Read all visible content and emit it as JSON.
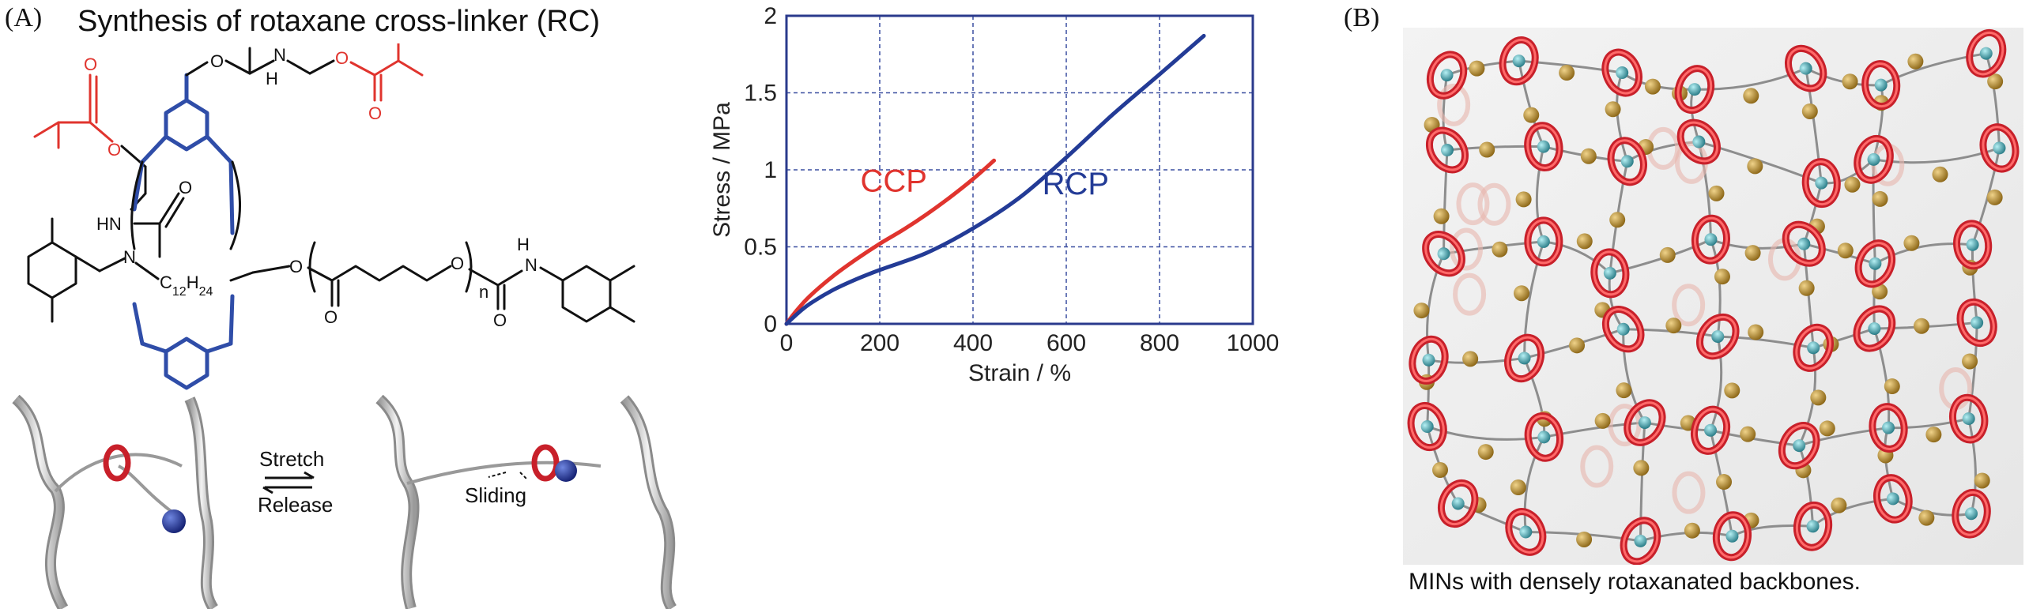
{
  "panel_a": {
    "letter": "(A)",
    "title": "Synthesis of rotaxane cross-linker (RC)",
    "structure_labels": {
      "o": "O",
      "hn": "HN",
      "h": "H",
      "n": "N",
      "c12h24": "C12H24",
      "nh_end": "N",
      "n_sub": "n"
    },
    "scheme": {
      "stretch": "Stretch",
      "release": "Release",
      "sliding": "Sliding"
    }
  },
  "panel_b": {
    "letter": "(B)",
    "caption": "MINs with densely rotaxanated backbones."
  },
  "colors": {
    "ccp": "#e0342e",
    "rcp": "#233b96",
    "frame": "#2a3a8c",
    "grid": "#3a4fa0"
  },
  "chart_data": {
    "type": "line",
    "xlabel": "Strain / %",
    "ylabel": "Stress / MPa",
    "xlim": [
      0,
      1000
    ],
    "ylim": [
      0,
      2
    ],
    "xticks": [
      "0",
      "200",
      "400",
      "600",
      "800",
      "1000"
    ],
    "yticks": [
      "0",
      "0.5",
      "1",
      "1.5",
      "2"
    ],
    "grid": true,
    "series": [
      {
        "name": "CCP",
        "x": [
          0,
          20,
          50,
          100,
          150,
          200,
          250,
          300,
          350,
          400,
          445
        ],
        "y": [
          0,
          0.08,
          0.18,
          0.31,
          0.42,
          0.52,
          0.61,
          0.71,
          0.82,
          0.94,
          1.06
        ]
      },
      {
        "name": "RCP",
        "x": [
          0,
          25,
          50,
          100,
          150,
          200,
          300,
          400,
          500,
          600,
          700,
          800,
          895
        ],
        "y": [
          0,
          0.07,
          0.13,
          0.22,
          0.29,
          0.35,
          0.46,
          0.62,
          0.82,
          1.08,
          1.36,
          1.62,
          1.87
        ]
      }
    ]
  }
}
